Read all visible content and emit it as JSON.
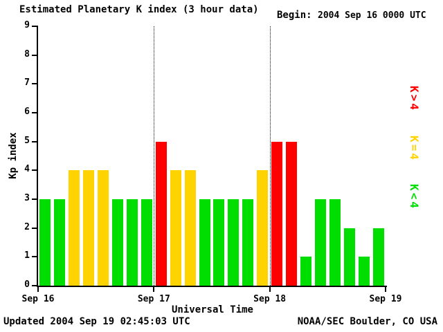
{
  "header": {
    "title": "Estimated Planetary K index (3 hour data)",
    "begin_label": "Begin:",
    "begin_value": "2004 Sep 16 0000 UTC"
  },
  "footer": {
    "updated": "Updated 2004 Sep 19 02:45:03 UTC",
    "source": "NOAA/SEC Boulder, CO USA"
  },
  "legend": [
    {
      "label": "K>4",
      "color": "#ff0000"
    },
    {
      "label": "K=4",
      "color": "#ffd300"
    },
    {
      "label": "K<4",
      "color": "#00dd00"
    }
  ],
  "chart_data": {
    "type": "bar",
    "title": "Estimated Planetary K index (3 hour data)",
    "xlabel": "Universal Time",
    "ylabel": "Kp index",
    "ylim": [
      0,
      9
    ],
    "y_ticks": [
      0,
      1,
      2,
      3,
      4,
      5,
      6,
      7,
      8,
      9
    ],
    "x_tick_labels": [
      "Sep 16",
      "Sep 17",
      "Sep 18",
      "Sep 19"
    ],
    "grid": "dotted vertical lines at day boundaries",
    "bar_interval_hours": 3,
    "days": [
      {
        "date": "Sep 16",
        "values": [
          3,
          3,
          4,
          4,
          4,
          3,
          3,
          3
        ]
      },
      {
        "date": "Sep 17",
        "values": [
          5,
          4,
          4,
          3,
          3,
          3,
          3,
          4
        ]
      },
      {
        "date": "Sep 18",
        "values": [
          5,
          5,
          1,
          3,
          3,
          2,
          1,
          2
        ]
      }
    ],
    "color_rules": {
      "lt4": "#00dd00",
      "eq4": "#ffd300",
      "gt4": "#ff0000"
    }
  }
}
